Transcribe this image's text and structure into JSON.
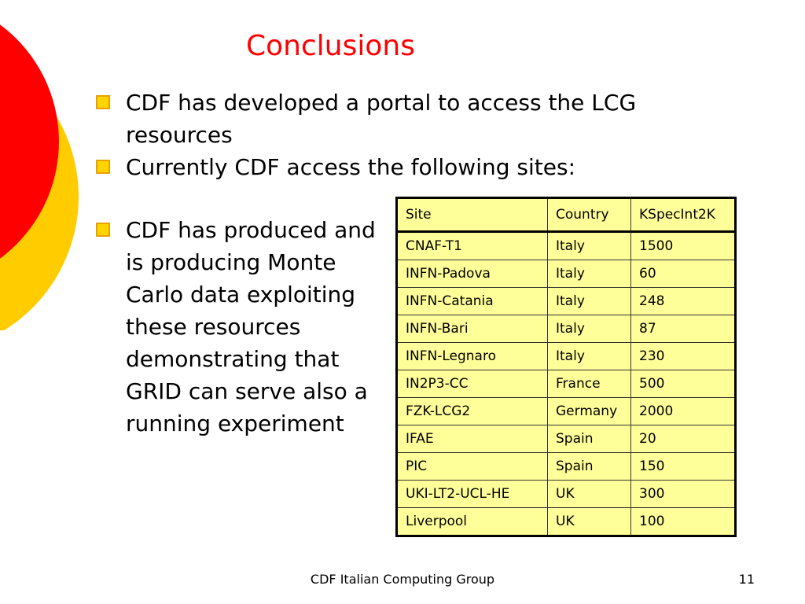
{
  "slide": {
    "title": "Conclusions",
    "bullets_top": [
      "CDF has developed a portal to access the LCG resources",
      "Currently CDF access the following sites:"
    ],
    "bullet_left": "CDF has produced and is producing Monte Carlo data exploiting these resources demonstrating that GRID can serve also a running experiment",
    "table": {
      "headers": [
        "Site",
        "Country",
        "KSpecInt2K"
      ],
      "rows": [
        [
          "CNAF-T1",
          "Italy",
          "1500"
        ],
        [
          "INFN-Padova",
          "Italy",
          "60"
        ],
        [
          "INFN-Catania",
          "Italy",
          "248"
        ],
        [
          "INFN-Bari",
          "Italy",
          "87"
        ],
        [
          "INFN-Legnaro",
          "Italy",
          "230"
        ],
        [
          "IN2P3-CC",
          "France",
          "500"
        ],
        [
          "FZK-LCG2",
          "Germany",
          "2000"
        ],
        [
          "IFAE",
          "Spain",
          "20"
        ],
        [
          "PIC",
          "Spain",
          "150"
        ],
        [
          "UKI-LT2-UCL-HE",
          "UK",
          "300"
        ],
        [
          "Liverpool",
          "UK",
          "100"
        ]
      ]
    },
    "footer": "CDF Italian Computing Group",
    "page_number": "11"
  },
  "colors": {
    "title": "#ff0000",
    "circle_red": "#ff0000",
    "circle_yellow": "#ffcc00",
    "table_fill": "#ffff99",
    "bullet_box": "#ffd400"
  },
  "icons": {
    "bullet": "square-bullet-icon"
  }
}
